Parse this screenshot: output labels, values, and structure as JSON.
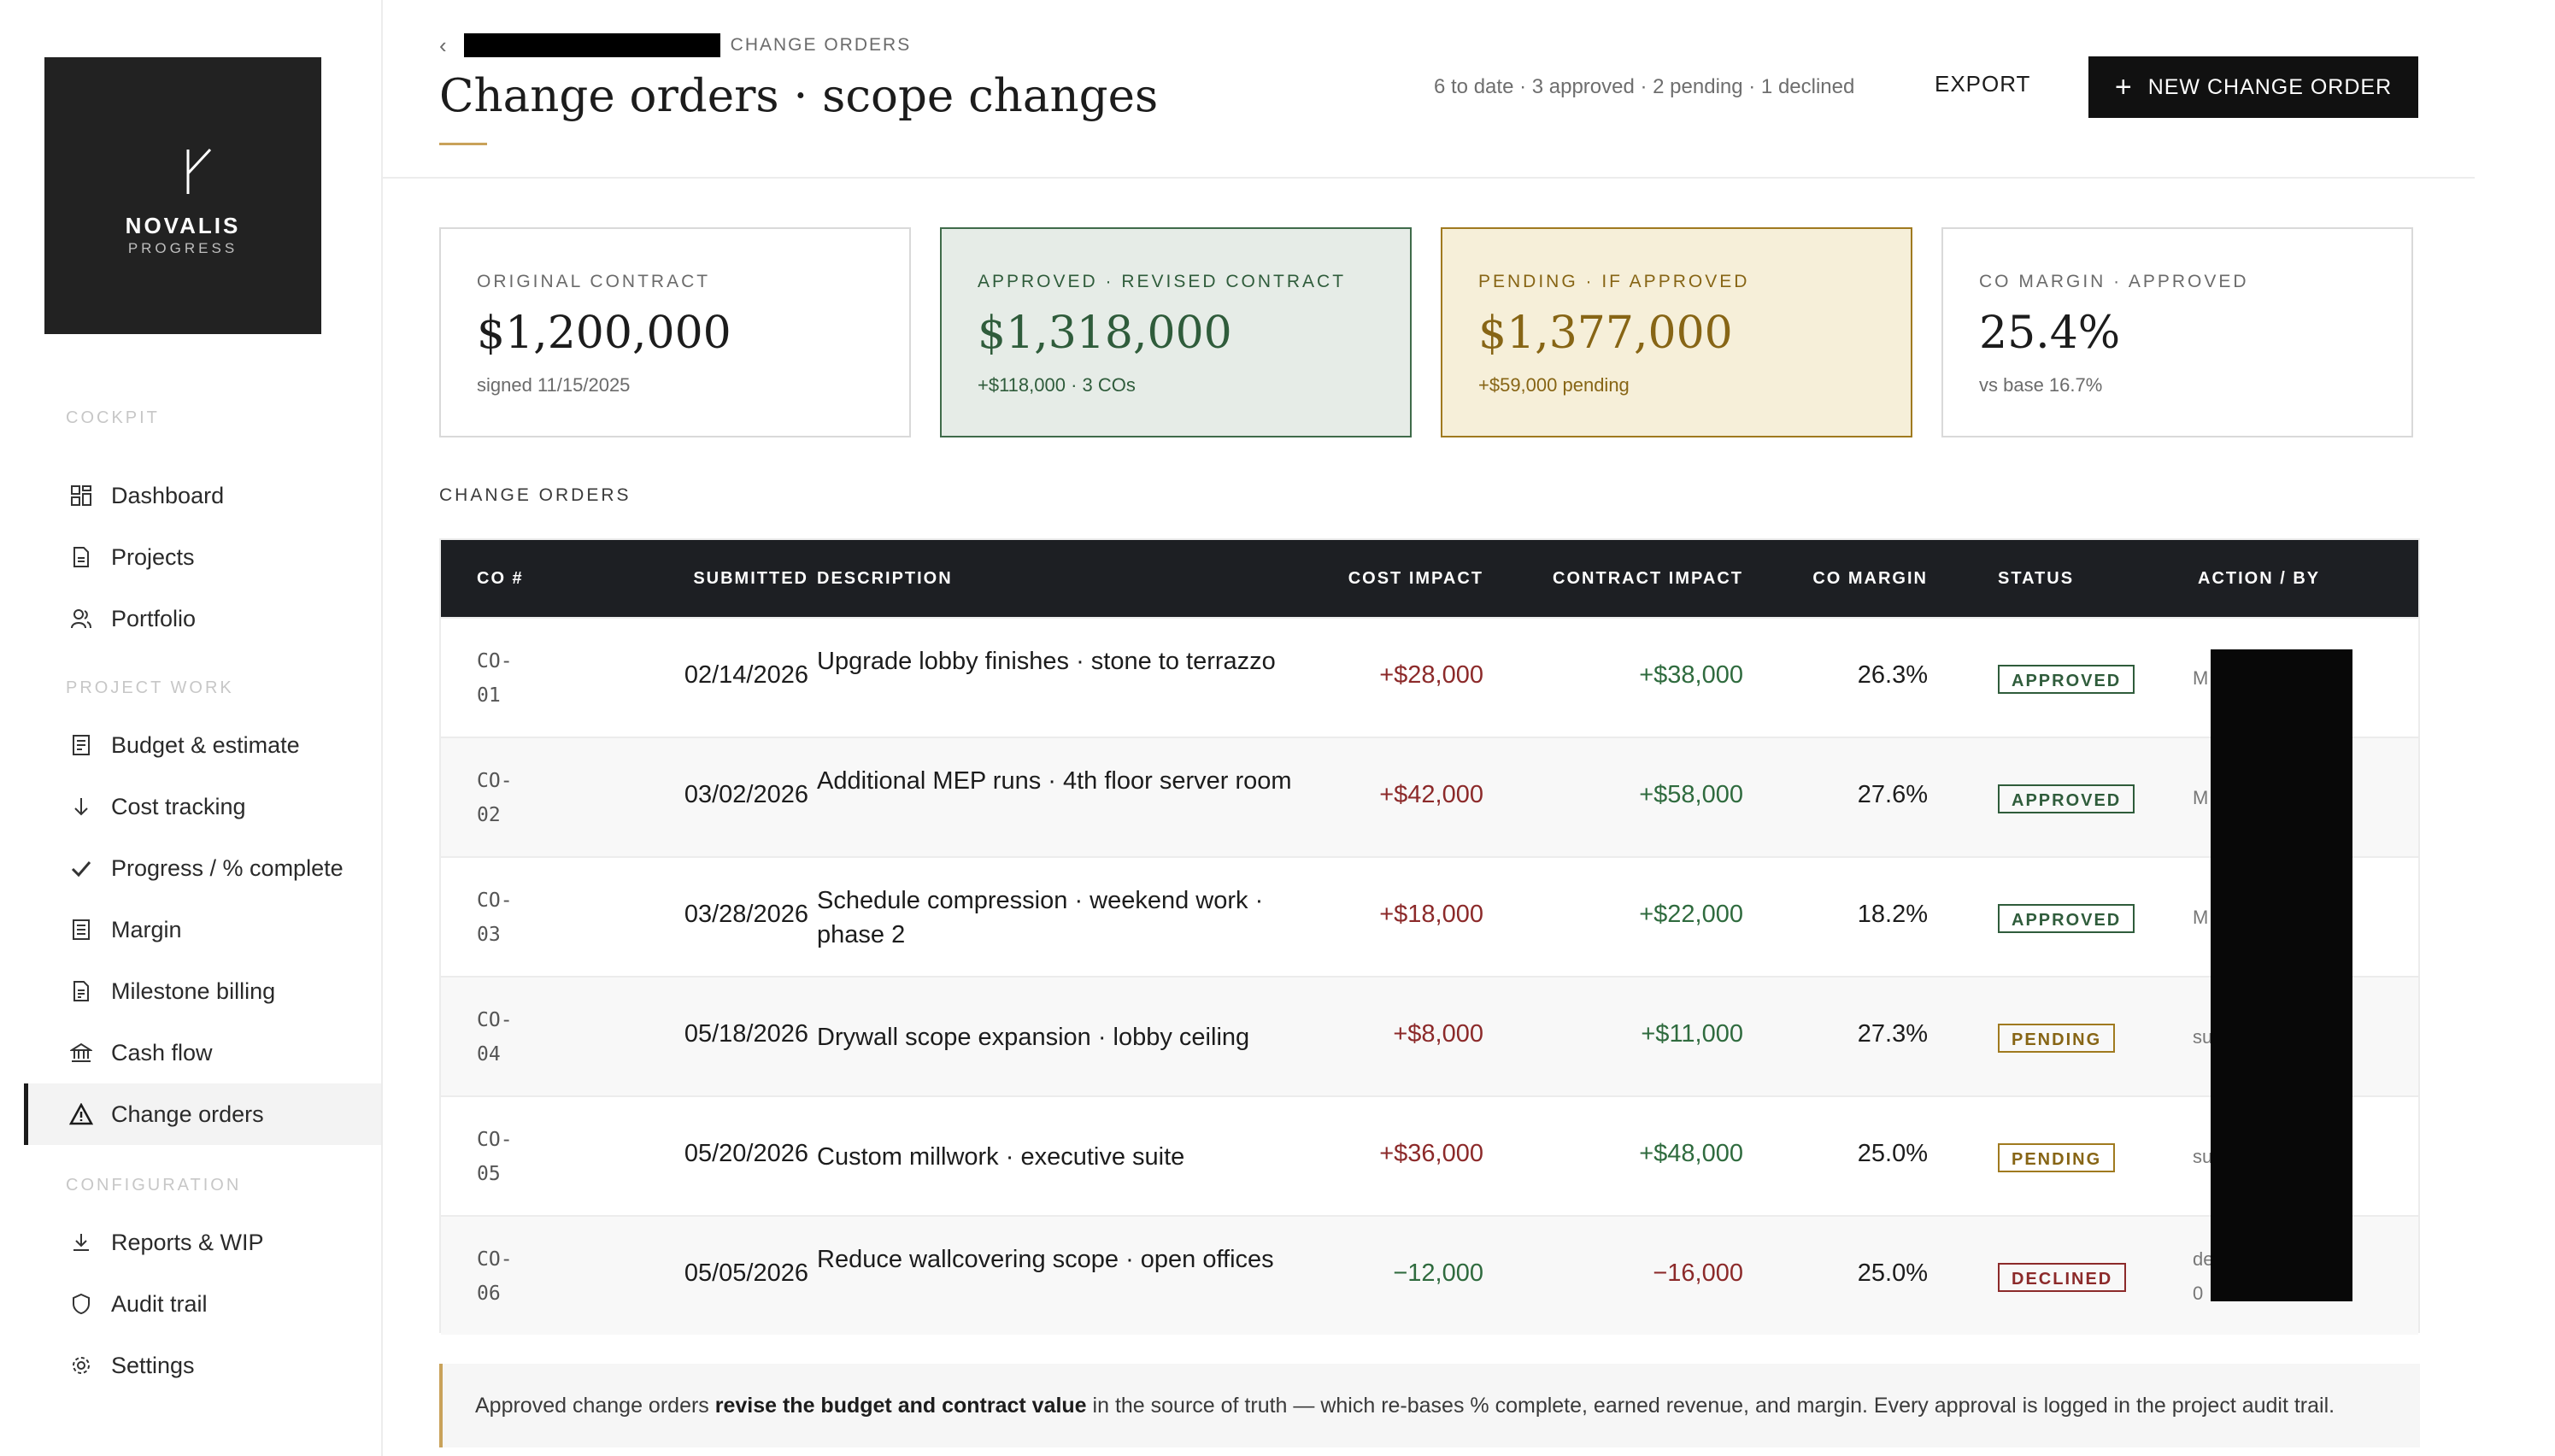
{
  "brand": {
    "name": "NOVALIS",
    "tagline": "PROGRESS"
  },
  "sidebar": {
    "sections": [
      {
        "label": "COCKPIT"
      },
      {
        "label": "PROJECT WORK"
      },
      {
        "label": "CONFIGURATION"
      }
    ],
    "items": [
      {
        "label": "Dashboard",
        "icon": "dashboard-grid-icon"
      },
      {
        "label": "Projects",
        "icon": "document-icon"
      },
      {
        "label": "Portfolio",
        "icon": "people-icon"
      },
      {
        "label": "Budget & estimate",
        "icon": "ledger-icon"
      },
      {
        "label": "Cost tracking",
        "icon": "arrow-down-icon"
      },
      {
        "label": "Progress / % complete",
        "icon": "check-icon"
      },
      {
        "label": "Margin",
        "icon": "list-doc-icon"
      },
      {
        "label": "Milestone billing",
        "icon": "invoice-icon"
      },
      {
        "label": "Cash flow",
        "icon": "bank-icon"
      },
      {
        "label": "Change orders",
        "icon": "warning-triangle-icon",
        "active": true
      },
      {
        "label": "Reports & WIP",
        "icon": "download-icon"
      },
      {
        "label": "Audit trail",
        "icon": "shield-icon"
      },
      {
        "label": "Settings",
        "icon": "gear-icon"
      }
    ]
  },
  "header": {
    "breadcrumb": "CHANGE ORDERS",
    "title": "Change orders · scope changes",
    "summary": "6 to date · 3 approved · 2 pending · 1 declined",
    "export_label": "EXPORT",
    "new_label": "NEW CHANGE ORDER"
  },
  "cards": [
    {
      "label": "ORIGINAL CONTRACT",
      "value": "$1,200,000",
      "note": "signed 11/15/2025"
    },
    {
      "label": "APPROVED · REVISED CONTRACT",
      "value": "$1,318,000",
      "note": "+$118,000 · 3 COs"
    },
    {
      "label": "PENDING · IF APPROVED",
      "value": "$1,377,000",
      "note": "+$59,000 pending"
    },
    {
      "label": "CO MARGIN · APPROVED",
      "value": "25.4%",
      "note": "vs base 16.7%"
    }
  ],
  "table": {
    "section_title": "CHANGE ORDERS",
    "headers": [
      "CO #",
      "SUBMITTED",
      "DESCRIPTION",
      "COST IMPACT",
      "CONTRACT IMPACT",
      "CO MARGIN",
      "STATUS",
      "ACTION / BY"
    ],
    "rows": [
      {
        "co1": "CO-",
        "co2": "01",
        "date": "02/14/2026",
        "desc": "Upgrade lobby finishes · stone to terrazzo",
        "cost": "+$28,000",
        "contract": "+$38,000",
        "margin": "26.3%",
        "status": "APPROVED",
        "by": "M"
      },
      {
        "co1": "CO-",
        "co2": "02",
        "date": "03/02/2026",
        "desc": "Additional MEP runs · 4th floor server room",
        "cost": "+$42,000",
        "contract": "+$58,000",
        "margin": "27.6%",
        "status": "APPROVED",
        "by": "M"
      },
      {
        "co1": "CO-",
        "co2": "03",
        "date": "03/28/2026",
        "desc": "Schedule compression · weekend work · phase 2",
        "cost": "+$18,000",
        "contract": "+$22,000",
        "margin": "18.2%",
        "status": "APPROVED",
        "by": "M"
      },
      {
        "co1": "CO-",
        "co2": "04",
        "date": "05/18/2026",
        "desc": "Drywall scope expansion · lobby ceiling",
        "cost": "+$8,000",
        "contract": "+$11,000",
        "margin": "27.3%",
        "status": "PENDING",
        "by": "su"
      },
      {
        "co1": "CO-",
        "co2": "05",
        "date": "05/20/2026",
        "desc": "Custom millwork · executive suite",
        "cost": "+$36,000",
        "contract": "+$48,000",
        "margin": "25.0%",
        "status": "PENDING",
        "by": "su"
      },
      {
        "co1": "CO-",
        "co2": "06",
        "date": "05/05/2026",
        "desc": "Reduce wallcovering scope · open offices",
        "cost": "−12,000",
        "contract": "−16,000",
        "margin": "25.0%",
        "status": "DECLINED",
        "by": "de",
        "by2": "0"
      }
    ]
  },
  "footnote": {
    "pre": "Approved change orders ",
    "bold": "revise the budget and contract value",
    "post": " in the source of truth — which re-bases % complete, earned revenue, and margin. Every approval is logged in the project audit trail."
  },
  "colors": {
    "accent_gold": "#c9a25a",
    "approved": "#2f5c3b",
    "pending": "#876515",
    "declined": "#8c2a2a",
    "header_dark": "#1d1f23"
  }
}
